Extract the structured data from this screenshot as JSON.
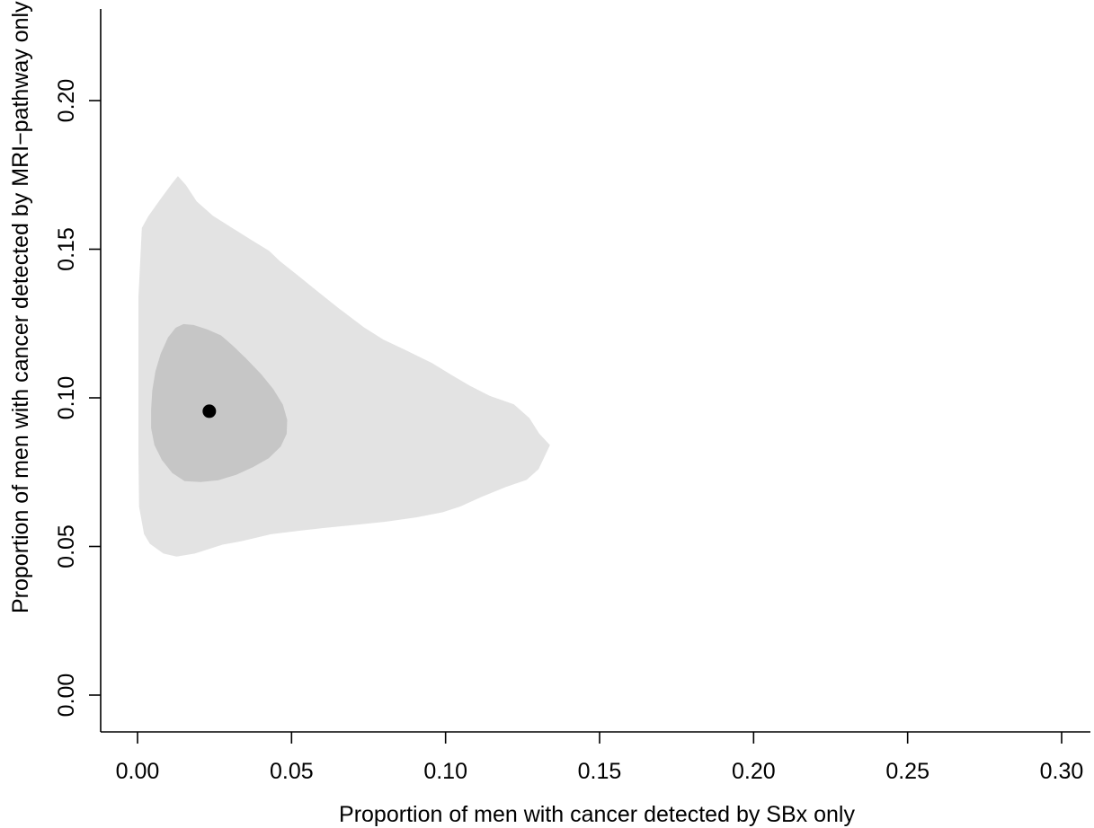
{
  "chart_data": {
    "type": "area",
    "title": "",
    "xlabel": "Proportion of men with cancer detected by SBx only",
    "ylabel": "Proportion of men with cancer detected by MRI−pathway only",
    "xlim": [
      0,
      0.31
    ],
    "ylim": [
      0,
      0.23
    ],
    "x_ticks": [
      "0.00",
      "0.05",
      "0.10",
      "0.15",
      "0.20",
      "0.25",
      "0.30"
    ],
    "y_ticks": [
      "0.00",
      "0.05",
      "0.10",
      "0.15",
      "0.20"
    ],
    "grid": false,
    "legend": "none",
    "series": [
      {
        "type": "region",
        "fill": "#e3e3e3",
        "points": [
          [
            0.0131,
            0.1746
          ],
          [
            0.0157,
            0.1716
          ],
          [
            0.0192,
            0.1661
          ],
          [
            0.0245,
            0.1612
          ],
          [
            0.0302,
            0.1575
          ],
          [
            0.0365,
            0.1534
          ],
          [
            0.0427,
            0.1495
          ],
          [
            0.0462,
            0.146
          ],
          [
            0.0519,
            0.1413
          ],
          [
            0.0582,
            0.136
          ],
          [
            0.0655,
            0.13
          ],
          [
            0.0734,
            0.1238
          ],
          [
            0.0798,
            0.1196
          ],
          [
            0.0871,
            0.116
          ],
          [
            0.0956,
            0.1117
          ],
          [
            0.1018,
            0.1078
          ],
          [
            0.1078,
            0.1041
          ],
          [
            0.1143,
            0.1007
          ],
          [
            0.1222,
            0.0978
          ],
          [
            0.1272,
            0.0932
          ],
          [
            0.1304,
            0.088
          ],
          [
            0.1339,
            0.0841
          ],
          [
            0.1302,
            0.076
          ],
          [
            0.1263,
            0.0724
          ],
          [
            0.1196,
            0.07
          ],
          [
            0.1117,
            0.0667
          ],
          [
            0.1047,
            0.0634
          ],
          [
            0.0991,
            0.0615
          ],
          [
            0.0905,
            0.0598
          ],
          [
            0.0804,
            0.0583
          ],
          [
            0.0692,
            0.0571
          ],
          [
            0.0603,
            0.0562
          ],
          [
            0.0525,
            0.0553
          ],
          [
            0.0433,
            0.0541
          ],
          [
            0.0339,
            0.0518
          ],
          [
            0.0276,
            0.0506
          ],
          [
            0.0186,
            0.0476
          ],
          [
            0.0127,
            0.0466
          ],
          [
            0.0084,
            0.0476
          ],
          [
            0.004,
            0.0509
          ],
          [
            0.0021,
            0.0542
          ],
          [
            0.0005,
            0.0634
          ],
          [
            0.0003,
            0.0814
          ],
          [
            0.0003,
            0.1045
          ],
          [
            0.0003,
            0.1339
          ],
          [
            0.0014,
            0.1572
          ],
          [
            0.0035,
            0.1611
          ],
          [
            0.0072,
            0.1665
          ],
          [
            0.0111,
            0.172
          ]
        ]
      },
      {
        "type": "region",
        "fill": "#c6c6c6",
        "points": [
          [
            0.0149,
            0.1248
          ],
          [
            0.0182,
            0.1245
          ],
          [
            0.0227,
            0.123
          ],
          [
            0.0271,
            0.121
          ],
          [
            0.031,
            0.1175
          ],
          [
            0.0352,
            0.1133
          ],
          [
            0.0401,
            0.108
          ],
          [
            0.0441,
            0.1029
          ],
          [
            0.0472,
            0.0977
          ],
          [
            0.0486,
            0.0926
          ],
          [
            0.0484,
            0.0879
          ],
          [
            0.0465,
            0.0836
          ],
          [
            0.0426,
            0.0797
          ],
          [
            0.0375,
            0.0767
          ],
          [
            0.032,
            0.0741
          ],
          [
            0.0263,
            0.0723
          ],
          [
            0.0205,
            0.0717
          ],
          [
            0.0153,
            0.072
          ],
          [
            0.0113,
            0.0747
          ],
          [
            0.0079,
            0.0791
          ],
          [
            0.0055,
            0.0841
          ],
          [
            0.0044,
            0.0898
          ],
          [
            0.0044,
            0.096
          ],
          [
            0.0048,
            0.1025
          ],
          [
            0.0058,
            0.1089
          ],
          [
            0.0075,
            0.1148
          ],
          [
            0.0099,
            0.1203
          ],
          [
            0.0124,
            0.1236
          ]
        ]
      },
      {
        "type": "point",
        "fill": "#000000",
        "x": 0.0233,
        "y": 0.0955
      }
    ]
  }
}
